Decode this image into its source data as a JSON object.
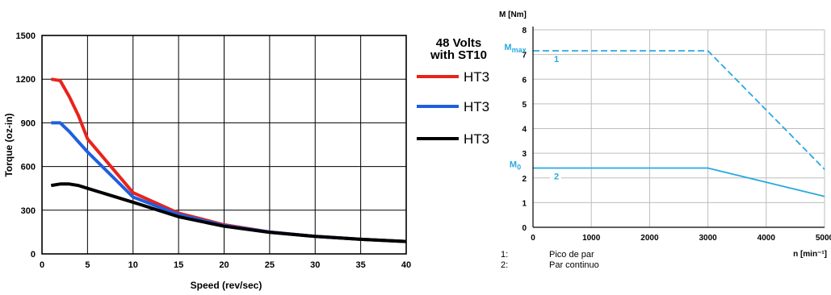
{
  "chart_data": [
    {
      "type": "line",
      "title": "",
      "xlabel": "Speed (rev/sec)",
      "ylabel": "Torque (oz-in)",
      "xlim": [
        0,
        40
      ],
      "ylim": [
        0,
        1500
      ],
      "xticks": [
        0,
        5,
        10,
        15,
        20,
        25,
        30,
        35,
        40
      ],
      "yticks": [
        0,
        300,
        600,
        900,
        1200,
        1500
      ],
      "grid": true,
      "legend": {
        "title_lines": [
          "48 Volts",
          "with ST10"
        ],
        "placement": "right"
      },
      "series": [
        {
          "name": "HT3",
          "color": "#e8231c",
          "x": [
            1,
            2,
            3,
            4,
            5,
            10,
            15,
            20,
            25,
            30,
            35,
            40
          ],
          "y": [
            1200,
            1190,
            1080,
            950,
            790,
            420,
            280,
            200,
            150,
            120,
            100,
            85
          ]
        },
        {
          "name": "HT3",
          "color": "#1f5fe0",
          "x": [
            1,
            2,
            3,
            4,
            5,
            10,
            15,
            20,
            25,
            30,
            35,
            40
          ],
          "y": [
            900,
            900,
            840,
            770,
            700,
            390,
            270,
            195,
            150,
            120,
            100,
            85
          ]
        },
        {
          "name": "HT3",
          "color": "#000000",
          "x": [
            1,
            2,
            3,
            4,
            5,
            10,
            15,
            20,
            25,
            30,
            35,
            40
          ],
          "y": [
            470,
            480,
            480,
            470,
            450,
            355,
            255,
            190,
            148,
            120,
            100,
            85
          ]
        }
      ]
    },
    {
      "type": "line",
      "title": "",
      "xlabel": "n [min⁻¹]",
      "ylabel": "M [Nm]",
      "xlim": [
        0,
        5000
      ],
      "ylim": [
        0,
        8
      ],
      "xticks": [
        0,
        1000,
        2000,
        3000,
        4000,
        5000
      ],
      "yticks": [
        0,
        1,
        2,
        3,
        4,
        5,
        6,
        7,
        8
      ],
      "grid": true,
      "color": "#29a9e0",
      "markers": [
        {
          "label": "M",
          "sub": "max",
          "y": 7.15
        },
        {
          "label": "M",
          "sub": "0",
          "y": 2.4
        }
      ],
      "series": [
        {
          "name": "1",
          "style": "dashed",
          "x": [
            0,
            3000,
            5000
          ],
          "y": [
            7.15,
            7.15,
            2.35
          ]
        },
        {
          "name": "2",
          "style": "solid",
          "x": [
            0,
            3000,
            5000
          ],
          "y": [
            2.4,
            2.4,
            1.25
          ]
        }
      ],
      "footnotes": [
        {
          "key": "1:",
          "text": "Pico de par"
        },
        {
          "key": "2:",
          "text": "Par continuo"
        }
      ]
    }
  ]
}
